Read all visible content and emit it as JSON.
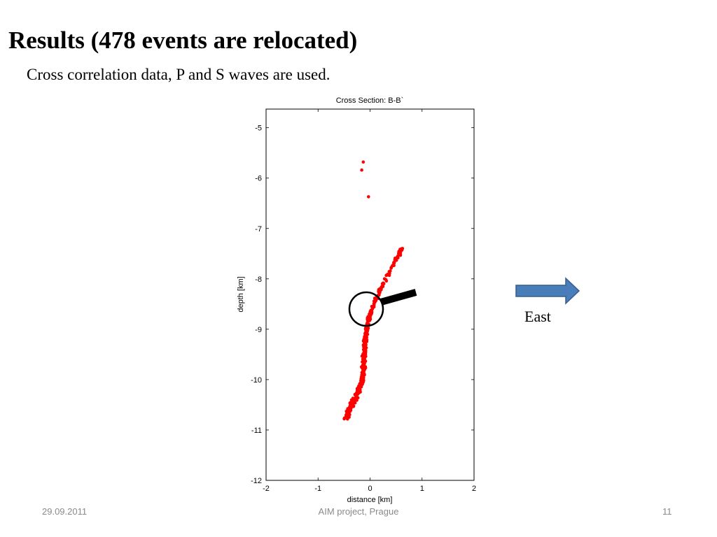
{
  "slide": {
    "title": "Results (478 events are relocated)",
    "subtitle": "Cross correlation data, P and S waves are used.",
    "east_label": "East",
    "arrow_color": "#4a7ebb",
    "arrow_icon": "right-arrow-icon",
    "magnifier_icon": "magnifier-icon"
  },
  "footer": {
    "date": "29.09.2011",
    "center": "AIM project, Prague",
    "page": "11"
  },
  "chart_data": {
    "type": "scatter",
    "title": "Cross Section: B-B`",
    "xlabel": "distance [km]",
    "ylabel": "depth [km]",
    "xlim": [
      -2,
      2
    ],
    "ylim": [
      -12,
      -4.63
    ],
    "xticks": [
      "-2",
      "-1",
      "0",
      "1",
      "2"
    ],
    "yticks": [
      "-5",
      "-6",
      "-7",
      "-8",
      "-9",
      "-10",
      "-11",
      "-12"
    ],
    "point_color": "#ff0000",
    "grid": false,
    "outliers": [
      [
        -0.13,
        -5.68
      ],
      [
        -0.16,
        -5.84
      ],
      [
        -0.03,
        -6.37
      ]
    ],
    "cluster_ridge": [
      [
        0.63,
        -7.38
      ],
      [
        0.5,
        -7.6
      ],
      [
        0.35,
        -7.9
      ],
      [
        0.2,
        -8.2
      ],
      [
        0.05,
        -8.55
      ],
      [
        -0.05,
        -8.9
      ],
      [
        -0.1,
        -9.3
      ],
      [
        -0.12,
        -9.7
      ],
      [
        -0.15,
        -10.0
      ],
      [
        -0.25,
        -10.3
      ],
      [
        -0.4,
        -10.6
      ],
      [
        -0.45,
        -10.78
      ]
    ],
    "cluster_count": 475,
    "magnifier_circle_center": [
      -0.05,
      -8.67
    ]
  }
}
